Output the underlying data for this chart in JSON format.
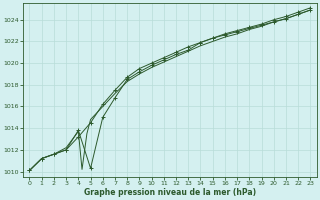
{
  "title": "Graphe pression niveau de la mer (hPa)",
  "background_color": "#d4f0f0",
  "grid_color": "#b8ddd8",
  "line_color": "#2d5a2d",
  "xlim": [
    -0.5,
    23.5
  ],
  "ylim": [
    1009.5,
    1025.5
  ],
  "yticks": [
    1010,
    1012,
    1014,
    1016,
    1018,
    1020,
    1022,
    1024
  ],
  "xticks": [
    0,
    1,
    2,
    3,
    4,
    5,
    6,
    7,
    8,
    9,
    10,
    11,
    12,
    13,
    14,
    15,
    16,
    17,
    18,
    19,
    20,
    21,
    22,
    23
  ],
  "series1_x": [
    0,
    1,
    2,
    3,
    4,
    5,
    6,
    7,
    8,
    9,
    10,
    11,
    12,
    13,
    14,
    15,
    16,
    17,
    18,
    19,
    20,
    21,
    22,
    23
  ],
  "series1_y": [
    1010.1,
    1011.2,
    1011.6,
    1012.0,
    1013.8,
    1010.3,
    1015.0,
    1016.8,
    1018.5,
    1019.2,
    1019.8,
    1020.3,
    1020.8,
    1021.2,
    1021.9,
    1022.3,
    1022.7,
    1023.0,
    1023.3,
    1023.6,
    1024.0,
    1024.3,
    1024.7,
    1025.1
  ],
  "series2_x": [
    0,
    1,
    2,
    3,
    4,
    5,
    6,
    7,
    8,
    9,
    10,
    11,
    12,
    13,
    14,
    15,
    16,
    17,
    18,
    19,
    20,
    21,
    22,
    23
  ],
  "series2_y": [
    1010.1,
    1011.2,
    1011.6,
    1012.0,
    1013.2,
    1014.5,
    1016.2,
    1017.5,
    1018.7,
    1019.5,
    1020.0,
    1020.5,
    1021.0,
    1021.5,
    1021.9,
    1022.3,
    1022.6,
    1022.9,
    1023.2,
    1023.5,
    1023.8,
    1024.1,
    1024.5,
    1024.9
  ],
  "series3_x": [
    0,
    1,
    2,
    3,
    4,
    4.3,
    4.7,
    5,
    6,
    7,
    8,
    9,
    10,
    11,
    12,
    13,
    14,
    15,
    16,
    17,
    18,
    19,
    20,
    21,
    22,
    23
  ],
  "series3_y": [
    1010.1,
    1011.2,
    1011.6,
    1012.2,
    1013.7,
    1010.2,
    1013.5,
    1014.8,
    1016.0,
    1017.2,
    1018.3,
    1019.0,
    1019.6,
    1020.1,
    1020.6,
    1021.1,
    1021.6,
    1022.0,
    1022.4,
    1022.7,
    1023.1,
    1023.4,
    1023.8,
    1024.1,
    1024.5,
    1024.9
  ]
}
